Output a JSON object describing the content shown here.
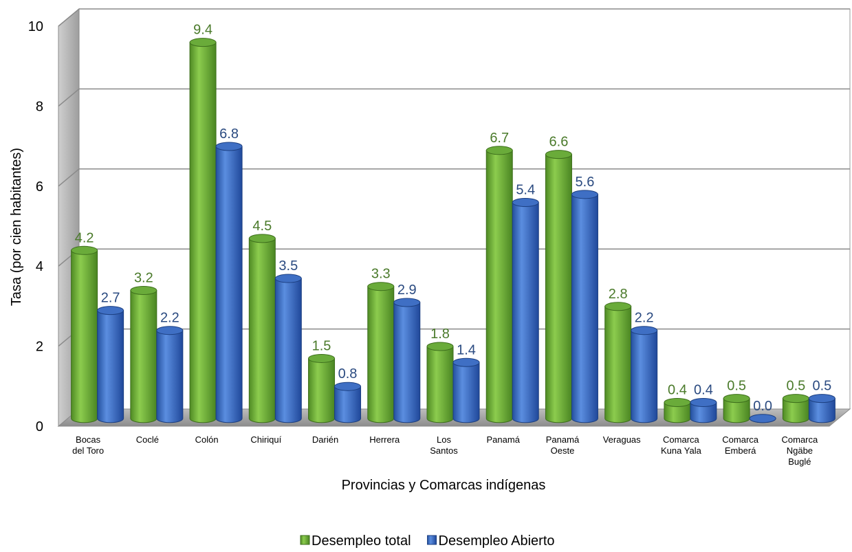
{
  "chart_data": {
    "type": "bar",
    "categories": [
      [
        "Bocas",
        "del Toro"
      ],
      [
        "Coclé"
      ],
      [
        "Colón"
      ],
      [
        "Chiriquí"
      ],
      [
        "Darién"
      ],
      [
        "Herrera"
      ],
      [
        "Los",
        "Santos"
      ],
      [
        "Panamá"
      ],
      [
        "Panamá",
        "Oeste"
      ],
      [
        "Veraguas"
      ],
      [
        "Comarca",
        "Kuna Yala"
      ],
      [
        "Comarca",
        "Emberá"
      ],
      [
        "Comarca",
        "Ngäbe",
        "Buglé"
      ]
    ],
    "series": [
      {
        "name": "Desempleo total",
        "color": "#6aab3a",
        "labelColor": "#4a7a2a",
        "values": [
          4.2,
          3.2,
          9.4,
          4.5,
          1.5,
          3.3,
          1.8,
          6.7,
          6.6,
          2.8,
          0.4,
          0.5,
          0.5
        ],
        "labels": [
          "4.2",
          "3.2",
          "9.4",
          "4.5",
          "1.5",
          "3.3",
          "1.8",
          "6.7",
          "6.6",
          "2.8",
          "0.4",
          "0.5",
          "0.5"
        ]
      },
      {
        "name": "Desempleo Abierto",
        "color": "#3f6fc4",
        "labelColor": "#2a4a80",
        "values": [
          2.7,
          2.2,
          6.8,
          3.5,
          0.8,
          2.9,
          1.4,
          5.4,
          5.6,
          2.2,
          0.4,
          0.0,
          0.5
        ],
        "labels": [
          "2.7",
          "2.2",
          "6.8",
          "3.5",
          "0.8",
          "2.9",
          "1.4",
          "5.4",
          "5.6",
          "2.2",
          "0.4",
          "0.0",
          "0.5"
        ]
      }
    ],
    "xlabel": "Provincias y Comarcas indígenas",
    "ylabel": "Tasa (por cien habitantes)",
    "ylim": [
      0,
      10
    ],
    "yticks": [
      "0",
      "2",
      "4",
      "6",
      "8",
      "10"
    ],
    "grid": true,
    "legend_position": "bottom"
  }
}
